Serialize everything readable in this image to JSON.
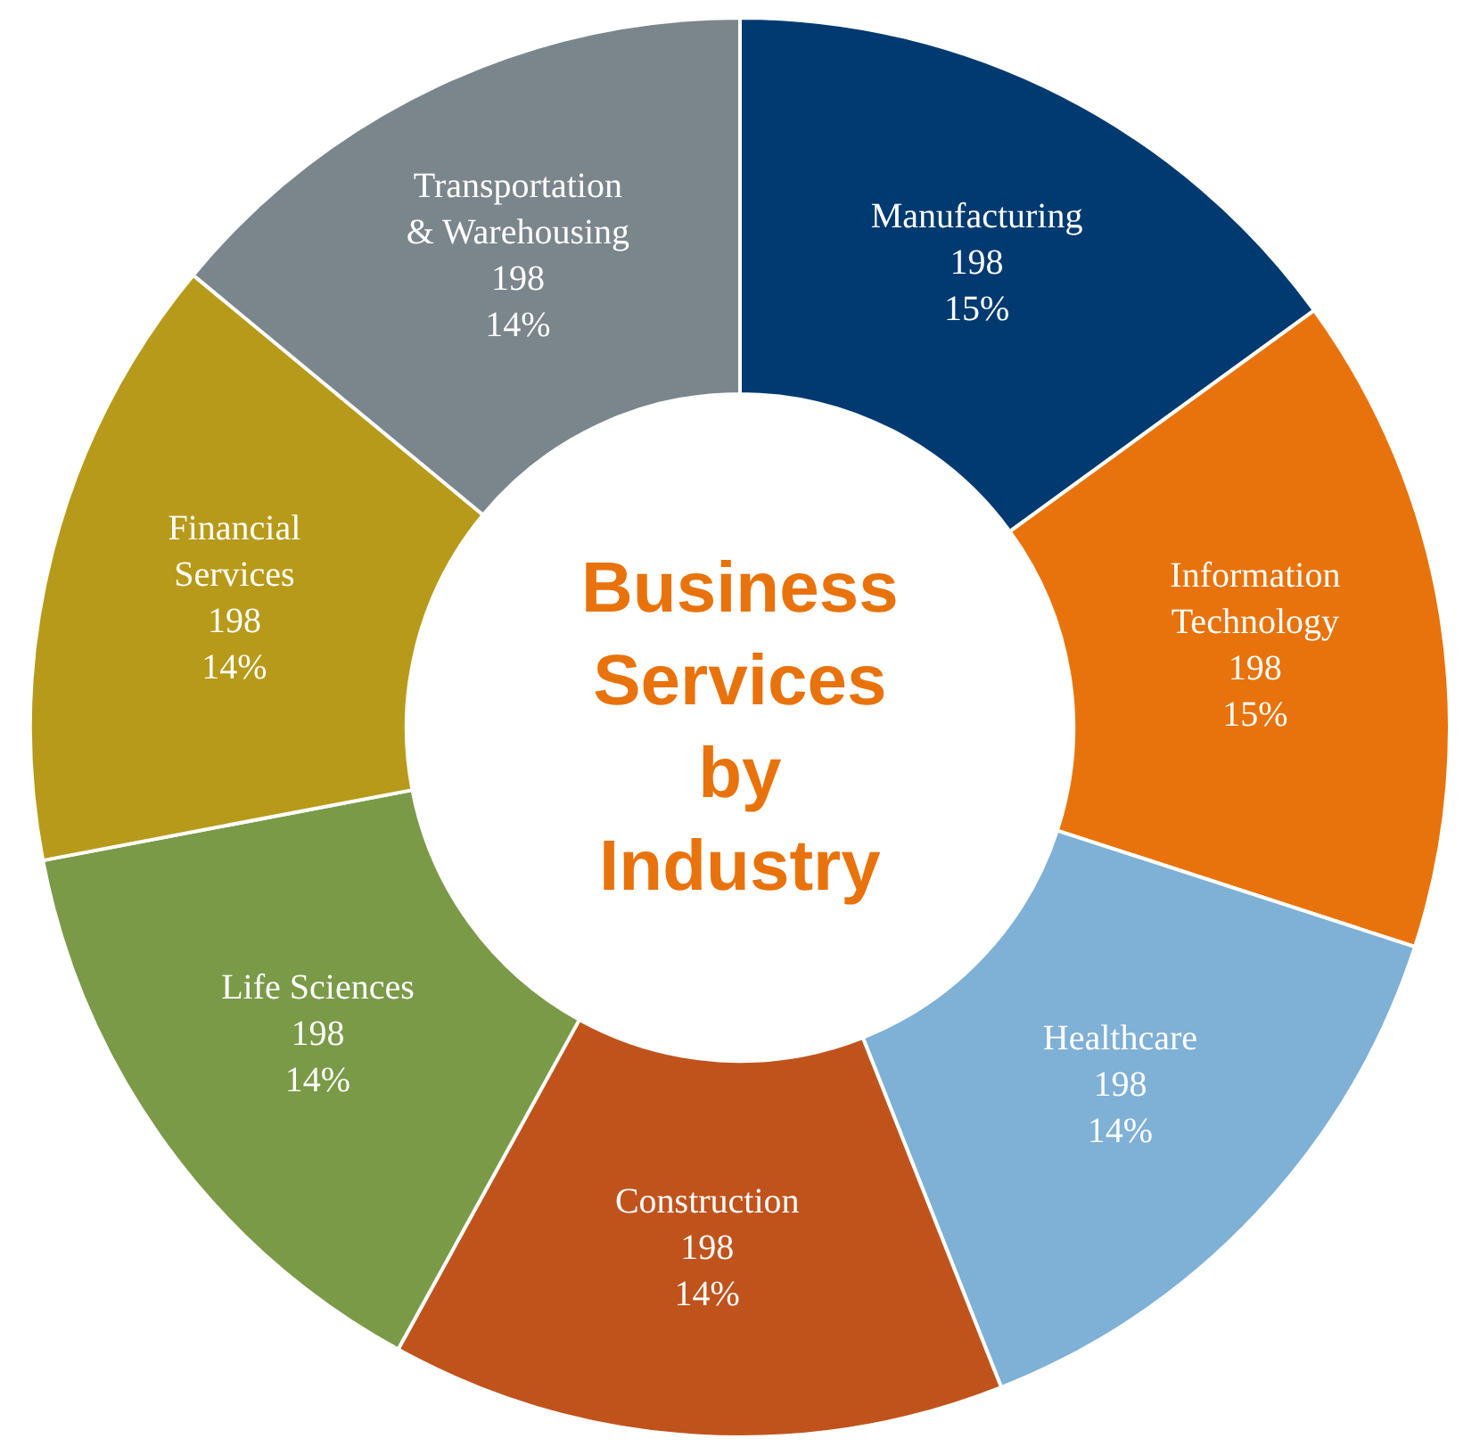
{
  "chart_data": {
    "type": "donut",
    "title": "Business Services by Industry",
    "categories": [
      "Manufacturing",
      "Information\nTechnology",
      "Healthcare",
      "Construction",
      "Life Sciences",
      "Financial\nServices",
      "Transportation\n& Warehousing"
    ],
    "values": [
      15,
      15,
      14,
      14,
      14,
      14,
      14
    ],
    "colors": [
      "#003a70",
      "#e8730c",
      "#7fb0d6",
      "#c0531c",
      "#7a9a48",
      "#b89a1a",
      "#7b858c"
    ],
    "value_labels": [
      "198\n15%",
      "198\n15%",
      "198\n14%",
      "198\n14%",
      "198\n14%",
      "198\n14%",
      "198\n14%"
    ],
    "legend": false
  }
}
